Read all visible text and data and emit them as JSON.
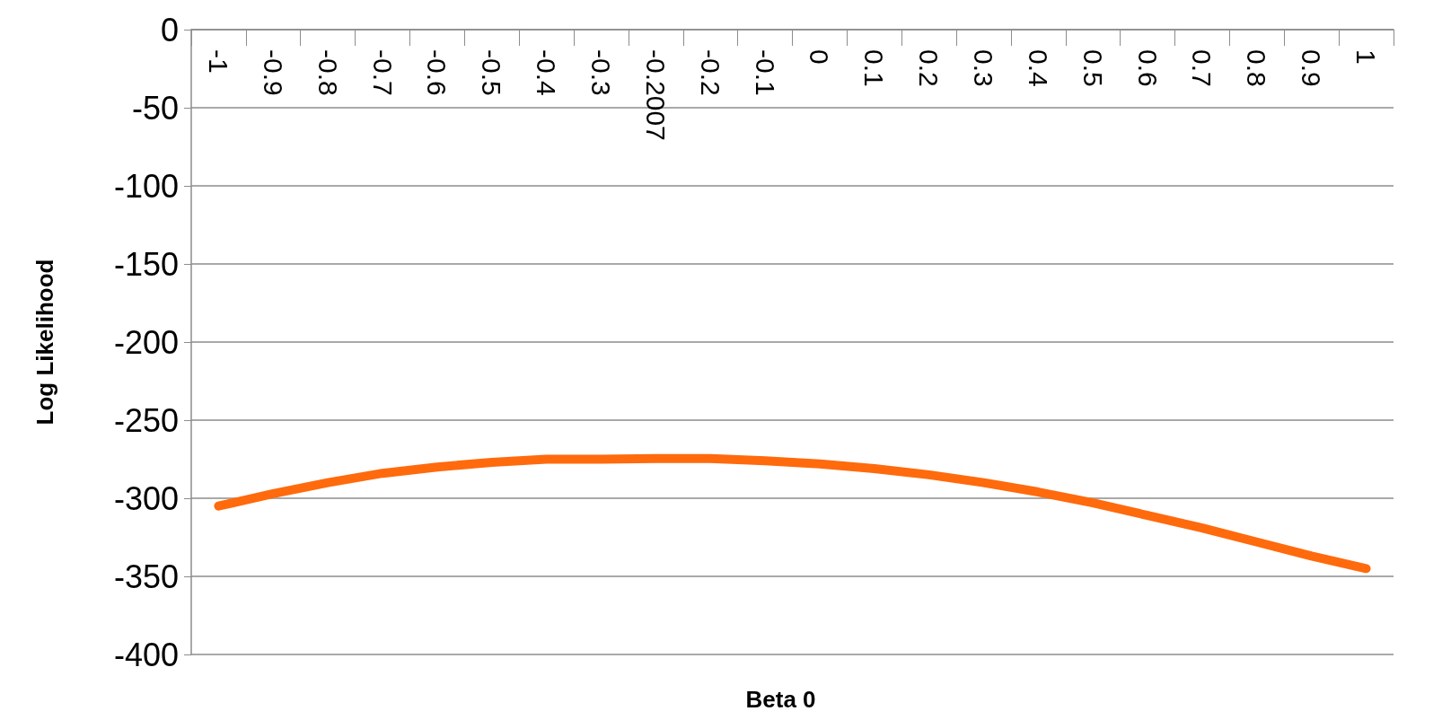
{
  "chart_data": {
    "type": "line",
    "xlabel": "Beta 0",
    "ylabel": "Log Likelihood",
    "categories": [
      "-1",
      "-0.9",
      "-0.8",
      "-0.7",
      "-0.6",
      "-0.5",
      "-0.4",
      "-0.3",
      "-0.2007",
      "-0.2",
      "-0.1",
      "0",
      "0.1",
      "0.2",
      "0.3",
      "0.4",
      "0.5",
      "0.6",
      "0.7",
      "0.8",
      "0.9",
      "1"
    ],
    "series": [
      {
        "color": "#ff6a0d",
        "values": [
          -305,
          -297,
          -290,
          -284,
          -280,
          -277,
          -275,
          -275,
          -274.5,
          -274.5,
          -276,
          -278,
          -281,
          -285,
          -290,
          -296,
          -303,
          -311,
          -319,
          -328,
          -337,
          -345
        ]
      }
    ],
    "ylim": [
      -400,
      0
    ],
    "yticks": [
      -400,
      -350,
      -300,
      -250,
      -200,
      -150,
      -100,
      -50,
      0
    ],
    "grid": "y",
    "marker": "none",
    "line_style": "solid"
  }
}
